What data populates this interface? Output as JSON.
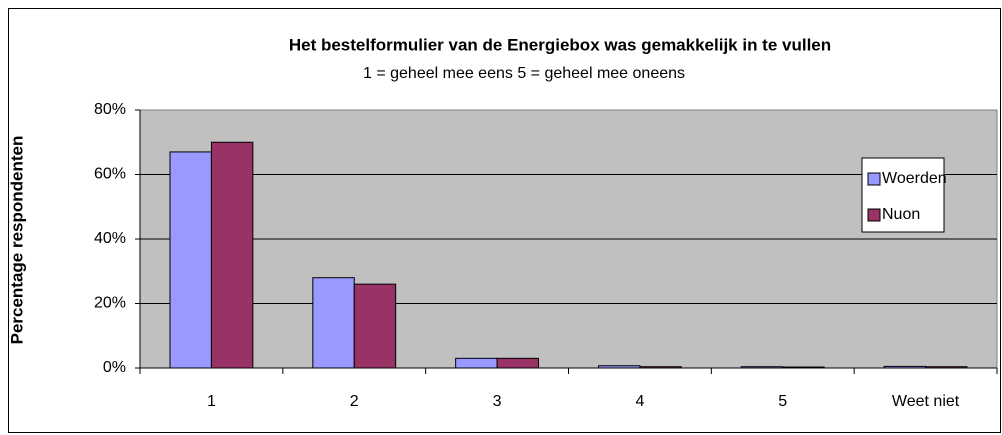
{
  "chart_data": {
    "type": "bar",
    "title": "Het bestelformulier van de Energiebox was gemakkelijk in te vullen",
    "subtitle": "1 = geheel mee eens  5 = geheel mee oneens",
    "y_label": "Percentage respondenten",
    "categories": [
      "1",
      "2",
      "3",
      "4",
      "5",
      "Weet niet"
    ],
    "series": [
      {
        "name": "Woerden",
        "color": "#9999ff",
        "values": [
          67,
          28,
          3,
          0.7,
          0.4,
          0.5
        ]
      },
      {
        "name": "Nuon",
        "color": "#993366",
        "values": [
          70,
          26,
          3,
          0.4,
          0.3,
          0.4
        ]
      }
    ],
    "ylim": [
      0,
      80
    ],
    "yticks": [
      {
        "value": 0,
        "label": "0%"
      },
      {
        "value": 20,
        "label": "20%"
      },
      {
        "value": 40,
        "label": "40%"
      },
      {
        "value": 60,
        "label": "60%"
      },
      {
        "value": 80,
        "label": "80%"
      }
    ],
    "grid": true,
    "legend": "right",
    "plot_background": "#c0c0c0"
  }
}
